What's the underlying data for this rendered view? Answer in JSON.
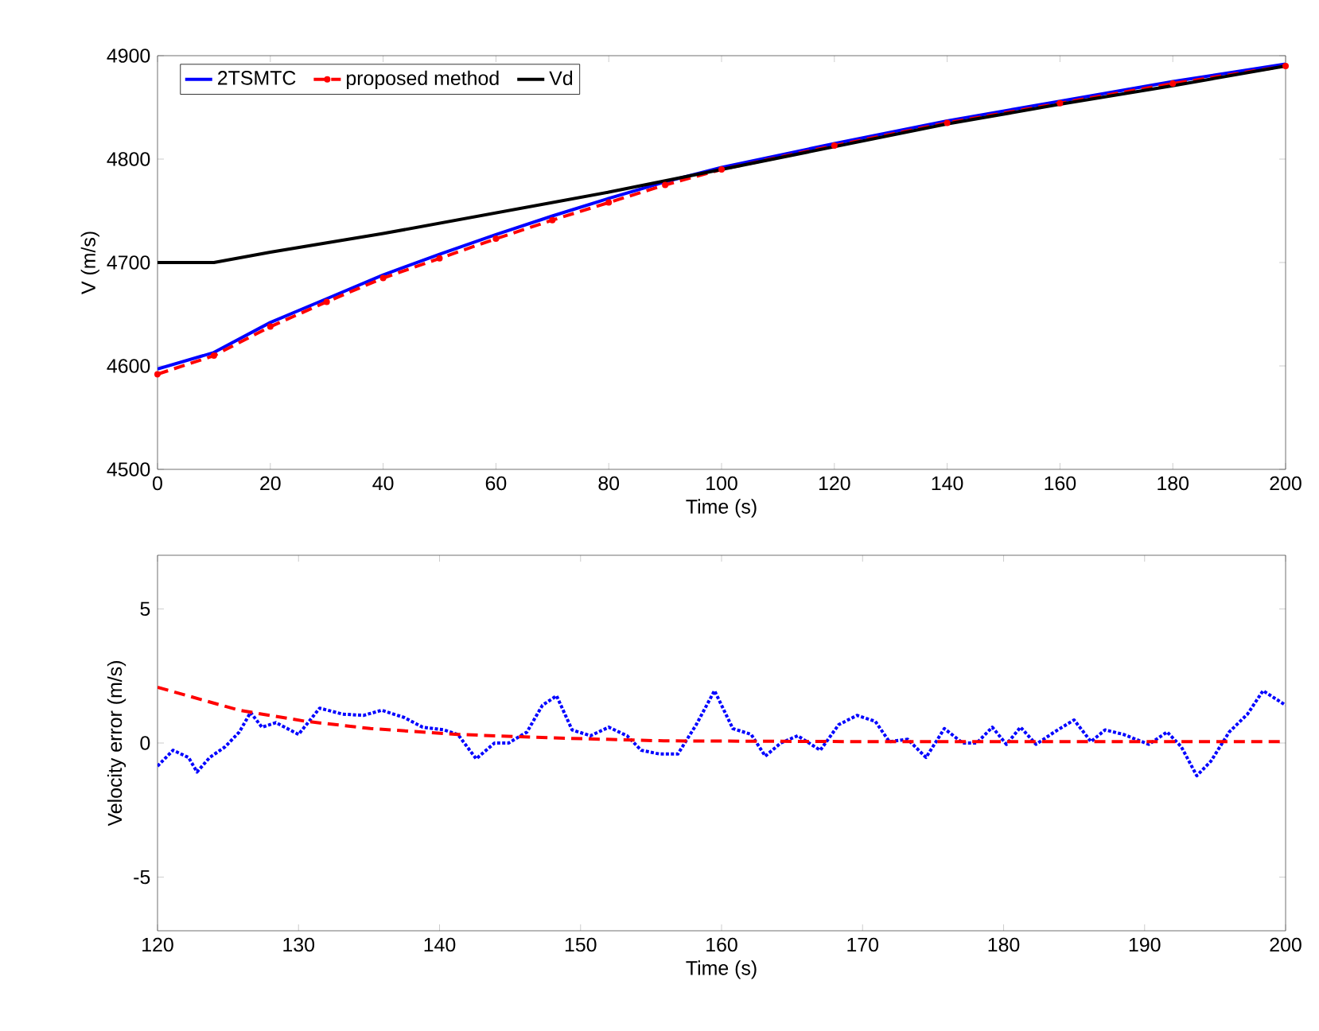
{
  "chart_data": [
    {
      "type": "line",
      "xlabel": "Time (s)",
      "ylabel": "V (m/s)",
      "xlim": [
        0,
        200
      ],
      "ylim": [
        4500,
        4900
      ],
      "xticks": [
        0,
        20,
        40,
        60,
        80,
        100,
        120,
        140,
        160,
        180,
        200
      ],
      "yticks": [
        4500,
        4600,
        4700,
        4800,
        4900
      ],
      "grid": false,
      "legend": "top left",
      "series": [
        {
          "name": "2TSMTC",
          "color": "#0000ff",
          "line_style": "solid",
          "x": [
            0,
            10,
            20,
            30,
            40,
            50,
            60,
            70,
            80,
            90,
            100,
            120,
            140,
            160,
            180,
            200
          ],
          "values": [
            4597,
            4613,
            4642,
            4665,
            4688,
            4708,
            4727,
            4745,
            4762,
            4778,
            4792,
            4815,
            4837,
            4856,
            4875,
            4892
          ]
        },
        {
          "name": "proposed method",
          "color": "#ff0000",
          "line_style": "dashed",
          "marker": "circle",
          "x": [
            0,
            10,
            20,
            30,
            40,
            50,
            60,
            70,
            80,
            90,
            100,
            120,
            140,
            160,
            180,
            200
          ],
          "values": [
            4592,
            4610,
            4638,
            4662,
            4685,
            4704,
            4723,
            4741,
            4758,
            4775,
            4790,
            4813,
            4835,
            4854,
            4873,
            4890
          ]
        },
        {
          "name": "Vd",
          "color": "#000000",
          "line_style": "solid",
          "x": [
            0,
            10,
            20,
            40,
            60,
            80,
            100,
            120,
            140,
            160,
            180,
            200
          ],
          "values": [
            4700,
            4700,
            4710,
            4728,
            4748,
            4768,
            4790,
            4812,
            4834,
            4853,
            4871,
            4890
          ]
        }
      ]
    },
    {
      "type": "line",
      "xlabel": "Time (s)",
      "ylabel": "Velocity error (m/s)",
      "xlim": [
        120,
        200
      ],
      "ylim": [
        -7,
        7
      ],
      "xticks": [
        120,
        130,
        140,
        150,
        160,
        170,
        180,
        190,
        200
      ],
      "yticks": [
        -5,
        0,
        5
      ],
      "grid": false,
      "legend": false,
      "series": [
        {
          "color": "#0000ff",
          "line_style": "dotted",
          "x": [
            120,
            121.1,
            122.2,
            122.8,
            123.7,
            124.8,
            125.8,
            126.6,
            127.4,
            128.4,
            130,
            131.5,
            133.1,
            134.6,
            135.9,
            137.5,
            138.8,
            140.3,
            141.3,
            142.6,
            143.9,
            144.9,
            146.2,
            147.3,
            148.3,
            149.4,
            150.7,
            152,
            153.3,
            154.3,
            155.6,
            156.9,
            158.2,
            159.5,
            160.8,
            162.1,
            163.1,
            164.2,
            165.4,
            167,
            168.3,
            169.6,
            170.9,
            171.9,
            173.2,
            174.5,
            175.8,
            177.1,
            178.1,
            179.2,
            180.2,
            181.2,
            182.3,
            183.6,
            185,
            186.2,
            187.2,
            188.5,
            190.3,
            191.6,
            192.6,
            193.7,
            194.7,
            196,
            197.3,
            198.4,
            200
          ],
          "values": [
            -0.86,
            -0.27,
            -0.54,
            -1.08,
            -0.54,
            -0.14,
            0.41,
            1.14,
            0.59,
            0.76,
            0.32,
            1.3,
            1.08,
            1.03,
            1.22,
            0.95,
            0.59,
            0.49,
            0.32,
            -0.59,
            0,
            0,
            0.41,
            1.41,
            1.76,
            0.49,
            0.27,
            0.59,
            0.27,
            -0.27,
            -0.41,
            -0.41,
            0.68,
            1.95,
            0.54,
            0.32,
            -0.49,
            0,
            0.27,
            -0.27,
            0.68,
            1.03,
            0.81,
            0.05,
            0.14,
            -0.54,
            0.54,
            0,
            0,
            0.59,
            -0.05,
            0.59,
            -0.05,
            0.41,
            0.86,
            0.05,
            0.49,
            0.32,
            -0.05,
            0.41,
            -0.14,
            -1.22,
            -0.68,
            0.41,
            1.08,
            1.95,
            1.41
          ]
        },
        {
          "color": "#ff0000",
          "line_style": "dashed",
          "x": [
            120,
            125.8,
            130.5,
            135.1,
            141.3,
            148.1,
            155.9,
            171.4,
            200
          ],
          "values": [
            2.08,
            1.22,
            0.81,
            0.54,
            0.32,
            0.19,
            0.08,
            0.05,
            0.05
          ]
        }
      ]
    }
  ]
}
